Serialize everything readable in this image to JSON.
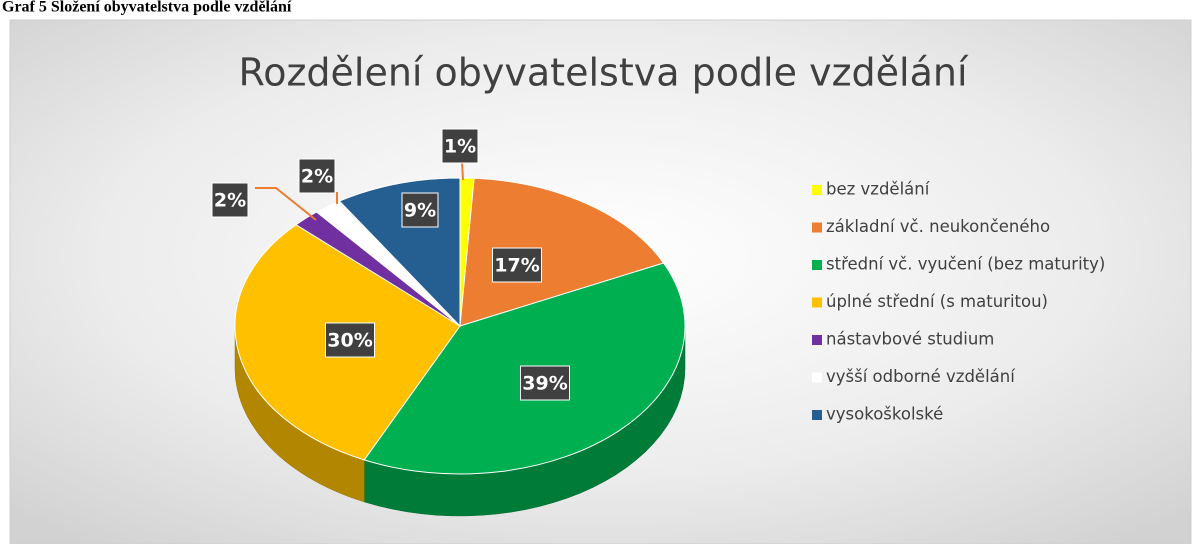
{
  "caption": "Graf 5 Složení obyvatelstva podle vzdělání",
  "chart_data": {
    "type": "pie",
    "title": "Rozdělení obyvatelstva podle vzdělání",
    "categories": [
      "bez vzdělání",
      "základní vč. neukončeného",
      "střední vč. vyučení (bez maturity)",
      "úplné střední (s maturitou)",
      "nástavbové studium",
      "vyšší odborné vzdělání",
      "vysokoškolské"
    ],
    "values": [
      1,
      17,
      39,
      30,
      2,
      2,
      9
    ],
    "value_labels": [
      "1%",
      "17%",
      "39%",
      "30%",
      "2%",
      "2%",
      "9%"
    ],
    "colors": [
      "#ffff00",
      "#ed7d31",
      "#00b050",
      "#ffc000",
      "#7030a0",
      "#ffffff",
      "#255e91"
    ],
    "legend": "right"
  }
}
